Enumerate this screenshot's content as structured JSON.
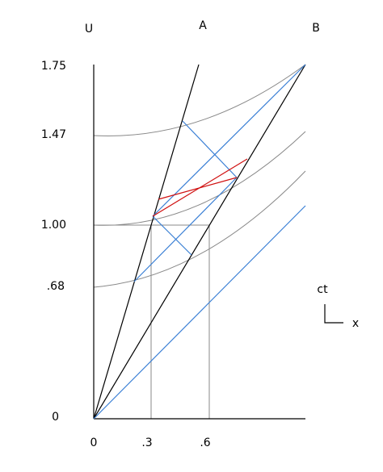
{
  "frames": {
    "u": "U",
    "a": "A",
    "b": "B"
  },
  "time_labels": [
    "1.75",
    "1.47",
    "1.00",
    ".68",
    "0"
  ],
  "space_labels": [
    "0",
    ".3",
    ".6"
  ],
  "axes_key": {
    "ct": "ct",
    "x": "x"
  }
}
